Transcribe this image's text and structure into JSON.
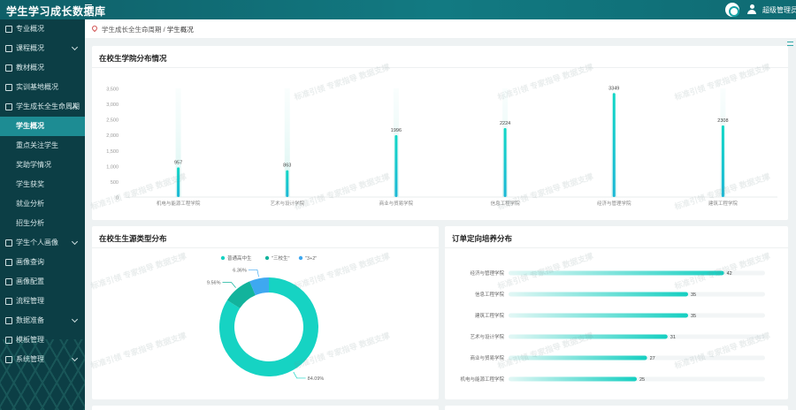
{
  "app": {
    "title": "学生学习成长数据库",
    "user": "超级管理员"
  },
  "colors": {
    "accent": "#17cfc0",
    "sidebar": "#0c3e45",
    "active": "#1d8c93",
    "donut": [
      "#16d3c3",
      "#12b39c",
      "#3ea8f0"
    ]
  },
  "sidebar": {
    "items": [
      {
        "label": "专业概况",
        "icon": "doc-icon"
      },
      {
        "label": "课程概况",
        "icon": "grid-icon",
        "arrow": true
      },
      {
        "label": "教材概况",
        "icon": "book-icon"
      },
      {
        "label": "实训基地概况",
        "icon": "building-icon"
      },
      {
        "label": "学生成长全生命周期",
        "icon": "growth-icon",
        "arrow": true,
        "open": true,
        "children": [
          {
            "label": "学生概况",
            "active": true
          },
          {
            "label": "重点关注学生"
          },
          {
            "label": "奖助学情况"
          },
          {
            "label": "学生获奖"
          },
          {
            "label": "就业分析"
          },
          {
            "label": "招生分析"
          }
        ]
      },
      {
        "label": "学生个人画像",
        "icon": "person-icon",
        "arrow": true
      },
      {
        "label": "画像查询",
        "icon": "search-icon"
      },
      {
        "label": "画像配置",
        "icon": "config-icon"
      },
      {
        "label": "流程管理",
        "icon": "flow-icon"
      },
      {
        "label": "数据准备",
        "icon": "data-icon",
        "arrow": true
      },
      {
        "label": "模板管理",
        "icon": "template-icon"
      },
      {
        "label": "系统管理",
        "icon": "gear-icon",
        "arrow": true
      }
    ]
  },
  "breadcrumb": {
    "parent": "学生成长全生命周期",
    "sep": " / ",
    "current": "学生概况"
  },
  "panels": {
    "college": {
      "title": "在校生学院分布情况"
    },
    "source": {
      "title": "在校生生源类型分布"
    },
    "order": {
      "title": "订单定向培养分布"
    }
  },
  "watermark": "标准引领  专家指导  数据支撑",
  "chart_data": [
    {
      "type": "bar",
      "title": "在校生学院分布情况",
      "categories": [
        "机电与能源工程学院",
        "艺术与设计学院",
        "商业与贸易学院",
        "信息工程学院",
        "经济与管理学院",
        "建筑工程学院"
      ],
      "values": [
        957,
        863,
        1996,
        2224,
        3349,
        2308
      ],
      "ylim": [
        0,
        3500
      ],
      "yticks": [
        "0",
        "500",
        "1,000",
        "1,500",
        "2,000",
        "2,500",
        "3,000",
        "3,500"
      ],
      "grid": false
    },
    {
      "type": "pie",
      "title": "在校生生源类型分布",
      "legend": [
        "普通高中生",
        "\"三校生\"",
        "\"3+2\""
      ],
      "legend_position": "top",
      "values": [
        84.09,
        9.56,
        6.36
      ],
      "labels": [
        "84.09%",
        "9.56%",
        "6.36%"
      ]
    },
    {
      "type": "bar",
      "orientation": "horizontal",
      "title": "订单定向培养分布",
      "categories": [
        "经济与管理学院",
        "信息工程学院",
        "建筑工程学院",
        "艺术与设计学院",
        "商业与贸易学院",
        "机电与能源工程学院"
      ],
      "values": [
        42,
        35,
        35,
        31,
        27,
        25
      ],
      "xlim": [
        0,
        50
      ]
    }
  ]
}
